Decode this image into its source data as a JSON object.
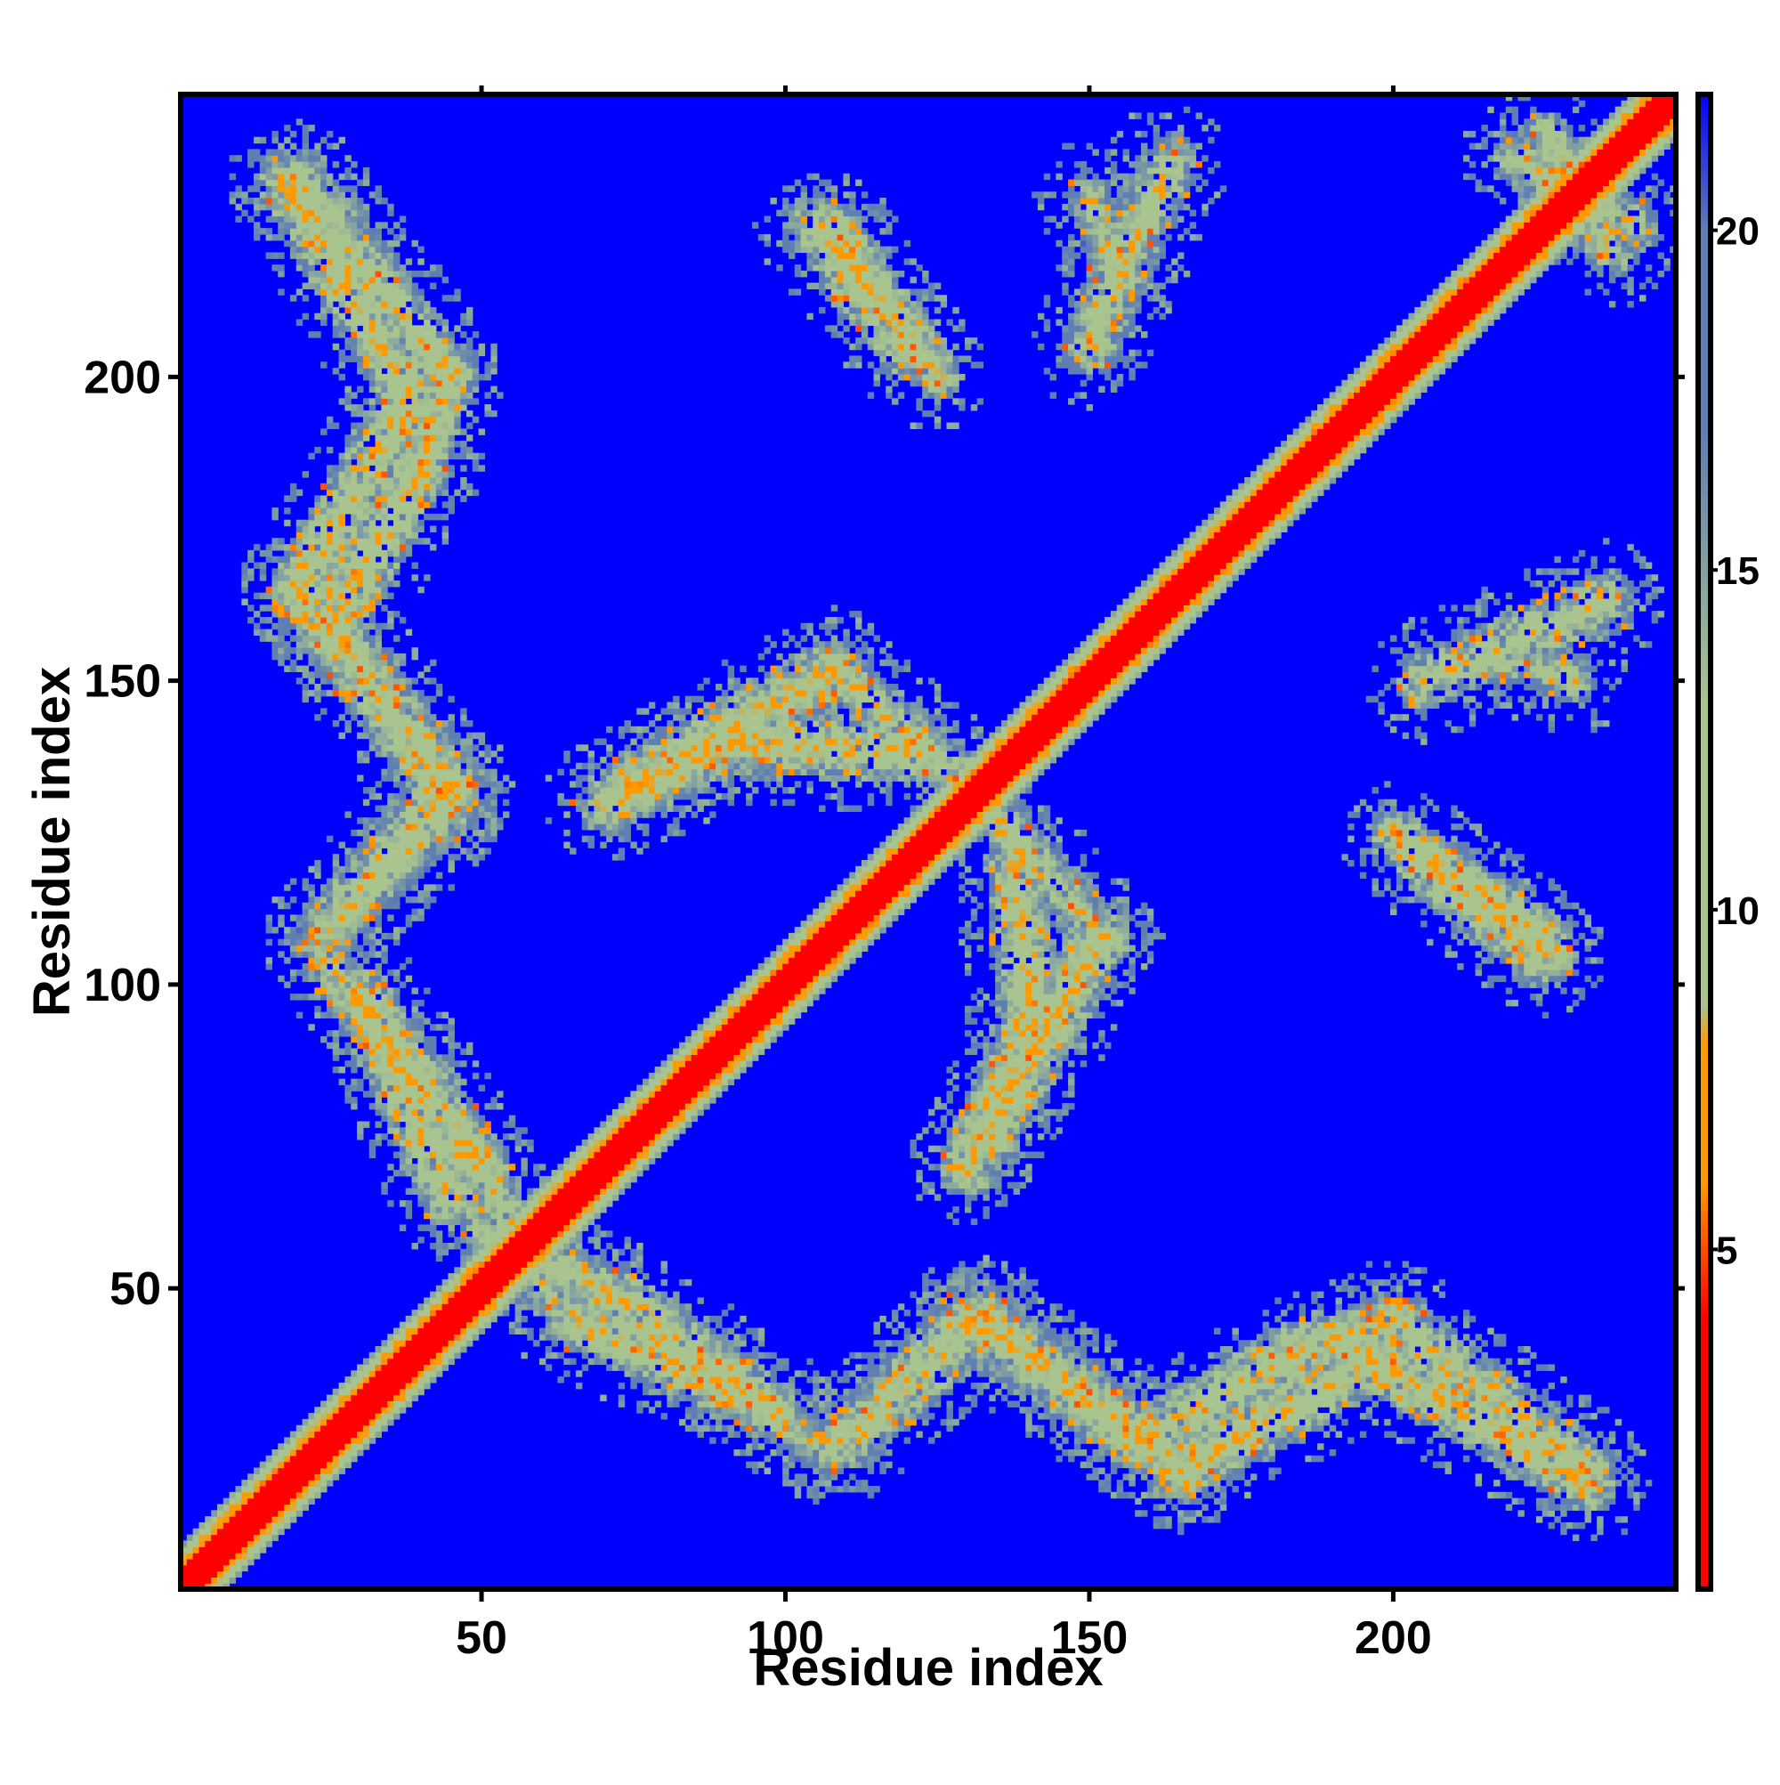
{
  "chart_data": {
    "type": "heatmap",
    "title": "",
    "xlabel": "Residue index",
    "ylabel": "Residue index",
    "xlim": [
      0.5,
      246.5
    ],
    "ylim": [
      0.5,
      246.5
    ],
    "x_ticks": [
      50,
      100,
      150,
      200
    ],
    "y_ticks": [
      50,
      100,
      150,
      200
    ],
    "colorbar": {
      "ticks": [
        5,
        10,
        15,
        20
      ],
      "range": [
        0,
        22
      ],
      "colors": {
        "red": "#ff0000",
        "orange": "#ff9900",
        "sage": "#a9c48f",
        "steel": "#5f7fb2",
        "blue": "#0000ff",
        "frame": "#000000"
      }
    },
    "matrix_description": "Residue-residue distance contact map; values below ~8 drawn in red/orange, 8-20 in sage/steel, beyond 20 saturated blue.",
    "diagonal_band": {
      "value_center": 1.5,
      "value_edge": 14,
      "half_width": 7
    },
    "contact_segments": [
      {
        "from": [
          18,
          232
        ],
        "to": [
          38,
          197
        ],
        "width": 5,
        "value": 9
      },
      {
        "from": [
          38,
          197
        ],
        "to": [
          20,
          165
        ],
        "width": 5,
        "value": 9
      },
      {
        "from": [
          20,
          165
        ],
        "to": [
          45,
          133
        ],
        "width": 5,
        "value": 10
      },
      {
        "from": [
          45,
          133
        ],
        "to": [
          25,
          110
        ],
        "width": 5,
        "value": 10
      },
      {
        "from": [
          30,
          98
        ],
        "to": [
          50,
          70
        ],
        "width": 5,
        "value": 9
      },
      {
        "from": [
          50,
          70
        ],
        "to": [
          60,
          50
        ],
        "width": 4,
        "value": 10
      },
      {
        "from": [
          65,
          45
        ],
        "to": [
          88,
          35
        ],
        "width": 5,
        "value": 9
      },
      {
        "from": [
          88,
          35
        ],
        "to": [
          103,
          25
        ],
        "width": 4,
        "value": 11
      },
      {
        "from": [
          107,
          23
        ],
        "to": [
          128,
          45
        ],
        "width": 4,
        "value": 11
      },
      {
        "from": [
          130,
          45
        ],
        "to": [
          158,
          25
        ],
        "width": 5,
        "value": 10
      },
      {
        "from": [
          158,
          25
        ],
        "to": [
          185,
          40
        ],
        "width": 5,
        "value": 9
      },
      {
        "from": [
          185,
          40
        ],
        "to": [
          200,
          45
        ],
        "width": 4,
        "value": 9
      },
      {
        "from": [
          200,
          45
        ],
        "to": [
          232,
          20
        ],
        "width": 5,
        "value": 10
      },
      {
        "from": [
          75,
          133
        ],
        "to": [
          108,
          152
        ],
        "width": 5,
        "value": 9
      },
      {
        "from": [
          108,
          152
        ],
        "to": [
          130,
          133
        ],
        "width": 4,
        "value": 10
      },
      {
        "from": [
          138,
          120
        ],
        "to": [
          140,
          92
        ],
        "width": 5,
        "value": 9
      },
      {
        "from": [
          140,
          92
        ],
        "to": [
          130,
          70
        ],
        "width": 5,
        "value": 9
      },
      {
        "from": [
          108,
          225
        ],
        "to": [
          125,
          200
        ],
        "width": 4,
        "value": 9
      },
      {
        "from": [
          150,
          230
        ],
        "to": [
          155,
          215
        ],
        "width": 4,
        "value": 11
      },
      {
        "from": [
          205,
          120
        ],
        "to": [
          225,
          105
        ],
        "width": 5,
        "value": 9
      },
      {
        "from": [
          205,
          150
        ],
        "to": [
          235,
          163
        ],
        "width": 5,
        "value": 10
      },
      {
        "from": [
          220,
          236
        ],
        "to": [
          240,
          225
        ],
        "width": 4,
        "value": 10
      }
    ]
  }
}
